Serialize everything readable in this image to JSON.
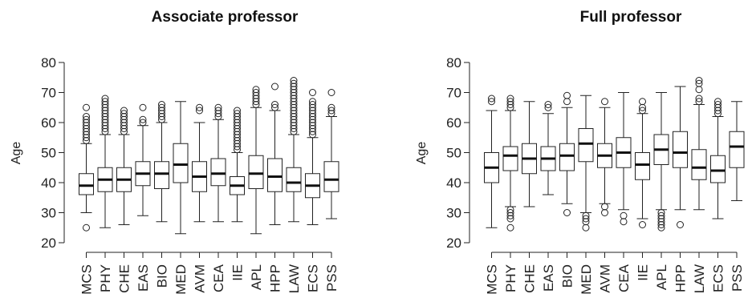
{
  "chart_data": [
    {
      "type": "box",
      "title": "Associate professor",
      "xlabel": "",
      "ylabel": "Age",
      "ylim": [
        20,
        80
      ],
      "yticks": [
        20,
        30,
        40,
        50,
        60,
        70,
        80
      ],
      "categories": [
        "MCS",
        "PHY",
        "CHE",
        "EAS",
        "BIO",
        "MED",
        "AVM",
        "CEA",
        "IIE",
        "APL",
        "HPP",
        "LAW",
        "ECS",
        "PSS"
      ],
      "boxes": [
        {
          "category": "MCS",
          "whisker_low": 30,
          "q1": 36,
          "median": 39,
          "q3": 43,
          "whisker_high": 53,
          "outliers": [
            25,
            54,
            55,
            56,
            57,
            58,
            59,
            60,
            61,
            62,
            65
          ]
        },
        {
          "category": "PHY",
          "whisker_low": 25,
          "q1": 37,
          "median": 41,
          "q3": 45,
          "whisker_high": 56,
          "outliers": [
            57,
            58,
            59,
            60,
            61,
            62,
            63,
            64,
            65,
            66,
            67,
            68
          ]
        },
        {
          "category": "CHE",
          "whisker_low": 26,
          "q1": 37,
          "median": 41,
          "q3": 45,
          "whisker_high": 56,
          "outliers": [
            57,
            58,
            59,
            60,
            61,
            62,
            63,
            64
          ]
        },
        {
          "category": "EAS",
          "whisker_low": 29,
          "q1": 39,
          "median": 43,
          "q3": 47,
          "whisker_high": 59,
          "outliers": [
            60,
            61,
            65
          ]
        },
        {
          "category": "BIO",
          "whisker_low": 27,
          "q1": 38,
          "median": 43,
          "q3": 47,
          "whisker_high": 60,
          "outliers": [
            61,
            62,
            63,
            64,
            65,
            66
          ]
        },
        {
          "category": "MED",
          "whisker_low": 23,
          "q1": 40,
          "median": 46,
          "q3": 53,
          "whisker_high": 67,
          "outliers": []
        },
        {
          "category": "AVM",
          "whisker_low": 27,
          "q1": 37,
          "median": 42,
          "q3": 47,
          "whisker_high": 60,
          "outliers": [
            64,
            65
          ]
        },
        {
          "category": "CEA",
          "whisker_low": 27,
          "q1": 39,
          "median": 43,
          "q3": 48,
          "whisker_high": 61,
          "outliers": [
            62,
            63,
            64,
            65
          ]
        },
        {
          "category": "IIE",
          "whisker_low": 27,
          "q1": 36,
          "median": 39,
          "q3": 42,
          "whisker_high": 50,
          "outliers": [
            51,
            52,
            53,
            54,
            55,
            56,
            57,
            58,
            59,
            60,
            61,
            62,
            63,
            64
          ]
        },
        {
          "category": "APL",
          "whisker_low": 23,
          "q1": 38,
          "median": 43,
          "q3": 49,
          "whisker_high": 65,
          "outliers": [
            66,
            67,
            68,
            69,
            70,
            71
          ]
        },
        {
          "category": "HPP",
          "whisker_low": 26,
          "q1": 37,
          "median": 42,
          "q3": 48,
          "whisker_high": 64,
          "outliers": [
            65,
            66,
            72
          ]
        },
        {
          "category": "LAW",
          "whisker_low": 27,
          "q1": 37,
          "median": 40,
          "q3": 45,
          "whisker_high": 56,
          "outliers": [
            57,
            58,
            59,
            60,
            61,
            62,
            63,
            64,
            65,
            66,
            67,
            68,
            69,
            70,
            71,
            72,
            73,
            74
          ]
        },
        {
          "category": "ECS",
          "whisker_low": 26,
          "q1": 35,
          "median": 39,
          "q3": 43,
          "whisker_high": 55,
          "outliers": [
            56,
            57,
            58,
            59,
            60,
            61,
            62,
            63,
            64,
            65,
            66,
            67,
            70
          ]
        },
        {
          "category": "PSS",
          "whisker_low": 28,
          "q1": 37,
          "median": 41,
          "q3": 47,
          "whisker_high": 62,
          "outliers": [
            63,
            64,
            65,
            70
          ]
        }
      ]
    },
    {
      "type": "box",
      "title": "Full professor",
      "xlabel": "",
      "ylabel": "Age",
      "ylim": [
        20,
        80
      ],
      "yticks": [
        20,
        30,
        40,
        50,
        60,
        70,
        80
      ],
      "categories": [
        "MCS",
        "PHY",
        "CHE",
        "EAS",
        "BIO",
        "MED",
        "AVM",
        "CEA",
        "IIE",
        "APL",
        "HPP",
        "LAW",
        "ECS",
        "PSS"
      ],
      "boxes": [
        {
          "category": "MCS",
          "whisker_low": 25,
          "q1": 40,
          "median": 45,
          "q3": 50,
          "whisker_high": 64,
          "outliers": [
            67,
            68
          ]
        },
        {
          "category": "PHY",
          "whisker_low": 32,
          "q1": 44,
          "median": 49,
          "q3": 52,
          "whisker_high": 64,
          "outliers": [
            25,
            28,
            29,
            30,
            31,
            65,
            66,
            67,
            68
          ]
        },
        {
          "category": "CHE",
          "whisker_low": 32,
          "q1": 43,
          "median": 48,
          "q3": 53,
          "whisker_high": 67,
          "outliers": []
        },
        {
          "category": "EAS",
          "whisker_low": 36,
          "q1": 44,
          "median": 48,
          "q3": 52,
          "whisker_high": 63,
          "outliers": [
            65,
            66
          ]
        },
        {
          "category": "BIO",
          "whisker_low": 33,
          "q1": 44,
          "median": 49,
          "q3": 53,
          "whisker_high": 65,
          "outliers": [
            30,
            67,
            69
          ]
        },
        {
          "category": "MED",
          "whisker_low": 30,
          "q1": 47,
          "median": 53,
          "q3": 58,
          "whisker_high": 69,
          "outliers": [
            25,
            27,
            28,
            29
          ]
        },
        {
          "category": "AVM",
          "whisker_low": 33,
          "q1": 45,
          "median": 49,
          "q3": 53,
          "whisker_high": 65,
          "outliers": [
            30,
            32,
            67
          ]
        },
        {
          "category": "CEA",
          "whisker_low": 31,
          "q1": 45,
          "median": 50,
          "q3": 55,
          "whisker_high": 70,
          "outliers": [
            27,
            29
          ]
        },
        {
          "category": "IIE",
          "whisker_low": 28,
          "q1": 41,
          "median": 46,
          "q3": 50,
          "whisker_high": 63,
          "outliers": [
            26,
            64,
            65,
            67
          ]
        },
        {
          "category": "APL",
          "whisker_low": 31,
          "q1": 46,
          "median": 51,
          "q3": 56,
          "whisker_high": 70,
          "outliers": [
            25,
            26,
            27,
            28,
            29,
            30
          ]
        },
        {
          "category": "HPP",
          "whisker_low": 31,
          "q1": 45,
          "median": 50,
          "q3": 57,
          "whisker_high": 72,
          "outliers": [
            26
          ]
        },
        {
          "category": "LAW",
          "whisker_low": 31,
          "q1": 41,
          "median": 45,
          "q3": 51,
          "whisker_high": 66,
          "outliers": [
            67,
            68,
            71,
            73,
            74
          ]
        },
        {
          "category": "ECS",
          "whisker_low": 28,
          "q1": 40,
          "median": 44,
          "q3": 49,
          "whisker_high": 62,
          "outliers": [
            63,
            64,
            65,
            66,
            67
          ]
        },
        {
          "category": "PSS",
          "whisker_low": 34,
          "q1": 45,
          "median": 52,
          "q3": 57,
          "whisker_high": 67,
          "outliers": []
        }
      ]
    }
  ]
}
